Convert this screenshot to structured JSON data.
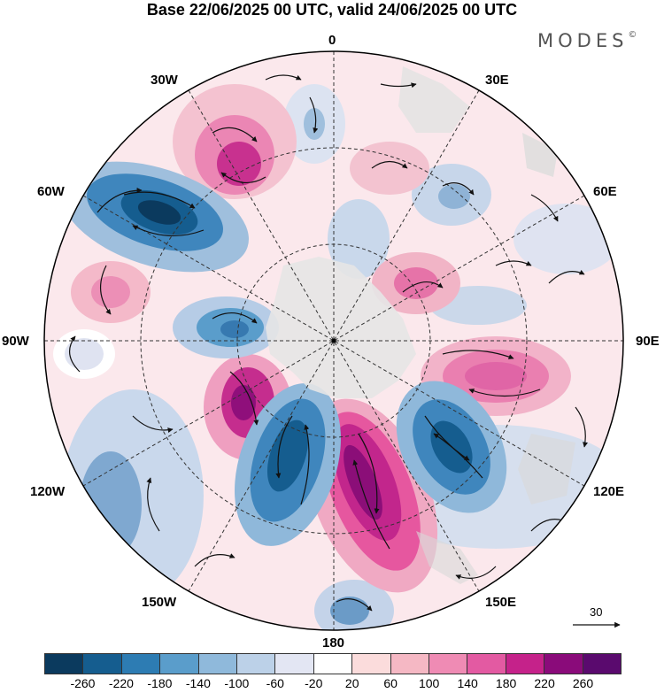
{
  "title": "Base 22/06/2025 00 UTC, valid 24/06/2025 00 UTC",
  "brand": "MODES",
  "brand_mark": "©",
  "meridian_labels": {
    "top": "0",
    "deg30e": "30E",
    "deg30w": "30W",
    "deg60e": "60E",
    "deg60w": "60W",
    "deg90e": "90E",
    "deg90w": "90W",
    "deg120e": "120E",
    "deg120w": "120W",
    "deg150e": "150E",
    "deg150w": "150W",
    "bottom": "180"
  },
  "vector_reference": "30",
  "colorbar": {
    "colors": [
      "#0b3a5e",
      "#155d8f",
      "#2d7cb3",
      "#5a9dcb",
      "#8fb9db",
      "#bcd1e8",
      "#e3e6f3",
      "#ffffff",
      "#fbdcdc",
      "#f5b8c4",
      "#ef8bb4",
      "#e35aa2",
      "#c5228a",
      "#8a0b7a",
      "#5a0a6e"
    ],
    "ticks": [
      "-260",
      "-220",
      "-180",
      "-140",
      "-100",
      "-60",
      "-20",
      "20",
      "60",
      "100",
      "140",
      "180",
      "220",
      "260"
    ]
  }
}
